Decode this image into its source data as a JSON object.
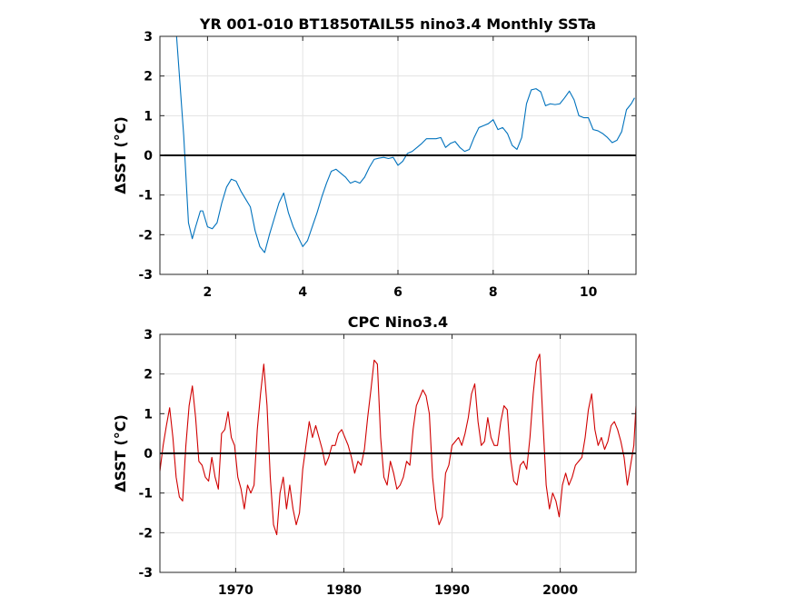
{
  "chart_data": [
    {
      "type": "line",
      "title": "YR 001-010 BT1850TAIL55 nino3.4 Monthly SSTa",
      "ylabel": "ΔSST (°C)",
      "xlabel": "",
      "xlim": [
        1,
        11
      ],
      "ylim": [
        -3,
        3
      ],
      "xticks": [
        2,
        4,
        6,
        8,
        10
      ],
      "xtick_labels": [
        "2",
        "4",
        "6",
        "8",
        "10"
      ],
      "yticks": [
        -3,
        -2,
        -1,
        0,
        1,
        2,
        3
      ],
      "ytick_labels": [
        "-3",
        "-2",
        "-1",
        "0",
        "1",
        "2",
        "3"
      ],
      "grid": true,
      "zero_line": true,
      "series": [
        {
          "color": "#0072bd",
          "x": [
            1.35,
            1.5,
            1.6,
            1.68,
            1.75,
            1.85,
            1.9,
            2.0,
            2.1,
            2.2,
            2.3,
            2.4,
            2.5,
            2.6,
            2.7,
            2.8,
            2.9,
            3.0,
            3.1,
            3.2,
            3.3,
            3.4,
            3.5,
            3.6,
            3.7,
            3.8,
            3.9,
            4.0,
            4.1,
            4.2,
            4.3,
            4.4,
            4.5,
            4.6,
            4.7,
            4.8,
            4.9,
            5.0,
            5.1,
            5.2,
            5.3,
            5.4,
            5.5,
            5.6,
            5.7,
            5.8,
            5.9,
            6.0,
            6.1,
            6.2,
            6.3,
            6.4,
            6.5,
            6.6,
            6.7,
            6.8,
            6.9,
            7.0,
            7.1,
            7.2,
            7.3,
            7.4,
            7.5,
            7.6,
            7.7,
            7.8,
            7.9,
            8.0,
            8.1,
            8.2,
            8.3,
            8.4,
            8.5,
            8.6,
            8.7,
            8.8,
            8.9,
            9.0,
            9.1,
            9.2,
            9.3,
            9.4,
            9.5,
            9.6,
            9.7,
            9.8,
            9.9,
            10.0,
            10.1,
            10.2,
            10.3,
            10.4,
            10.5,
            10.6,
            10.7,
            10.8,
            10.9,
            10.97
          ],
          "values": [
            3.0,
            0.5,
            -1.7,
            -2.1,
            -1.8,
            -1.4,
            -1.4,
            -1.8,
            -1.85,
            -1.7,
            -1.2,
            -0.8,
            -0.6,
            -0.65,
            -0.9,
            -1.1,
            -1.3,
            -1.9,
            -2.3,
            -2.45,
            -2.0,
            -1.6,
            -1.2,
            -0.95,
            -1.45,
            -1.8,
            -2.05,
            -2.3,
            -2.15,
            -1.8,
            -1.45,
            -1.05,
            -0.7,
            -0.4,
            -0.35,
            -0.45,
            -0.55,
            -0.7,
            -0.65,
            -0.7,
            -0.55,
            -0.3,
            -0.1,
            -0.07,
            -0.05,
            -0.08,
            -0.05,
            -0.25,
            -0.15,
            0.05,
            0.1,
            0.2,
            0.3,
            0.42,
            0.42,
            0.42,
            0.45,
            0.2,
            0.3,
            0.35,
            0.2,
            0.1,
            0.15,
            0.45,
            0.7,
            0.75,
            0.8,
            0.9,
            0.65,
            0.7,
            0.55,
            0.25,
            0.15,
            0.45,
            1.3,
            1.65,
            1.68,
            1.6,
            1.25,
            1.3,
            1.28,
            1.3,
            1.45,
            1.62,
            1.4,
            1.0,
            0.95,
            0.95,
            0.65,
            0.62,
            0.55,
            0.45,
            0.32,
            0.38,
            0.6,
            1.15,
            1.3,
            1.45
          ]
        }
      ]
    },
    {
      "type": "line",
      "title": "CPC Nino3.4",
      "ylabel": "ΔSST (°C)",
      "xlabel": "",
      "xlim": [
        1963,
        2007
      ],
      "ylim": [
        -3,
        3
      ],
      "xticks": [
        1970,
        1980,
        1990,
        2000
      ],
      "xtick_labels": [
        "1970",
        "1980",
        "1990",
        "2000"
      ],
      "yticks": [
        -3,
        -2,
        -1,
        0,
        1,
        2,
        3
      ],
      "ytick_labels": [
        "-3",
        "-2",
        "-1",
        "0",
        "1",
        "2",
        "3"
      ],
      "grid": true,
      "zero_line": true,
      "series": [
        {
          "color": "#d00000",
          "x": [
            1963.0,
            1963.3,
            1963.6,
            1963.9,
            1964.2,
            1964.5,
            1964.8,
            1965.1,
            1965.4,
            1965.7,
            1966.0,
            1966.3,
            1966.6,
            1966.9,
            1967.2,
            1967.5,
            1967.8,
            1968.1,
            1968.4,
            1968.7,
            1969.0,
            1969.3,
            1969.6,
            1969.9,
            1970.2,
            1970.5,
            1970.8,
            1971.1,
            1971.4,
            1971.7,
            1972.0,
            1972.3,
            1972.6,
            1972.9,
            1973.2,
            1973.5,
            1973.8,
            1974.1,
            1974.4,
            1974.7,
            1975.0,
            1975.3,
            1975.6,
            1975.9,
            1976.2,
            1976.5,
            1976.8,
            1977.1,
            1977.4,
            1977.7,
            1978.0,
            1978.3,
            1978.6,
            1978.9,
            1979.2,
            1979.5,
            1979.8,
            1980.1,
            1980.4,
            1980.7,
            1981.0,
            1981.3,
            1981.6,
            1981.9,
            1982.2,
            1982.5,
            1982.8,
            1983.1,
            1983.4,
            1983.7,
            1984.0,
            1984.3,
            1984.6,
            1984.9,
            1985.2,
            1985.5,
            1985.8,
            1986.1,
            1986.4,
            1986.7,
            1987.0,
            1987.3,
            1987.6,
            1987.9,
            1988.2,
            1988.5,
            1988.8,
            1989.1,
            1989.4,
            1989.7,
            1990.0,
            1990.3,
            1990.6,
            1990.9,
            1991.2,
            1991.5,
            1991.8,
            1992.1,
            1992.4,
            1992.7,
            1993.0,
            1993.3,
            1993.6,
            1993.9,
            1994.2,
            1994.5,
            1994.8,
            1995.1,
            1995.4,
            1995.7,
            1996.0,
            1996.3,
            1996.6,
            1996.9,
            1997.2,
            1997.5,
            1997.8,
            1998.1,
            1998.4,
            1998.7,
            1999.0,
            1999.3,
            1999.6,
            1999.9,
            2000.2,
            2000.5,
            2000.8,
            2001.1,
            2001.4,
            2001.7,
            2002.0,
            2002.3,
            2002.6,
            2002.9,
            2003.2,
            2003.5,
            2003.8,
            2004.1,
            2004.4,
            2004.7,
            2005.0,
            2005.3,
            2005.6,
            2005.9,
            2006.2,
            2006.5,
            2006.8,
            2007.0
          ],
          "values": [
            -0.45,
            0.2,
            0.7,
            1.15,
            0.4,
            -0.6,
            -1.1,
            -1.2,
            0.2,
            1.2,
            1.7,
            0.9,
            -0.2,
            -0.3,
            -0.6,
            -0.7,
            -0.1,
            -0.6,
            -0.9,
            0.5,
            0.6,
            1.05,
            0.4,
            0.2,
            -0.6,
            -0.9,
            -1.4,
            -0.8,
            -1.0,
            -0.8,
            0.6,
            1.5,
            2.25,
            1.2,
            -0.6,
            -1.8,
            -2.05,
            -1.0,
            -0.6,
            -1.4,
            -0.8,
            -1.4,
            -1.8,
            -1.5,
            -0.4,
            0.2,
            0.8,
            0.4,
            0.7,
            0.4,
            0.1,
            -0.3,
            -0.1,
            0.2,
            0.2,
            0.5,
            0.6,
            0.4,
            0.2,
            -0.1,
            -0.5,
            -0.2,
            -0.3,
            0.1,
            0.9,
            1.6,
            2.35,
            2.25,
            0.4,
            -0.6,
            -0.8,
            -0.2,
            -0.5,
            -0.9,
            -0.8,
            -0.6,
            -0.2,
            -0.3,
            0.6,
            1.2,
            1.4,
            1.6,
            1.45,
            1.0,
            -0.6,
            -1.4,
            -1.8,
            -1.6,
            -0.5,
            -0.3,
            0.2,
            0.3,
            0.4,
            0.2,
            0.5,
            0.9,
            1.5,
            1.75,
            0.8,
            0.2,
            0.3,
            0.9,
            0.4,
            0.2,
            0.2,
            0.8,
            1.2,
            1.1,
            -0.1,
            -0.7,
            -0.8,
            -0.3,
            -0.2,
            -0.4,
            0.4,
            1.5,
            2.3,
            2.5,
            0.8,
            -0.8,
            -1.4,
            -1.0,
            -1.2,
            -1.6,
            -0.8,
            -0.5,
            -0.8,
            -0.6,
            -0.3,
            -0.2,
            -0.1,
            0.4,
            1.1,
            1.5,
            0.6,
            0.2,
            0.4,
            0.1,
            0.3,
            0.7,
            0.8,
            0.6,
            0.3,
            -0.1,
            -0.8,
            -0.3,
            0.2,
            1.2
          ]
        }
      ]
    }
  ]
}
